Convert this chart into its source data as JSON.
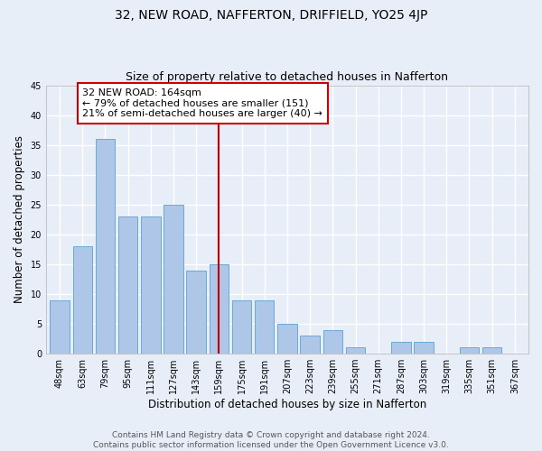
{
  "title": "32, NEW ROAD, NAFFERTON, DRIFFIELD, YO25 4JP",
  "subtitle": "Size of property relative to detached houses in Nafferton",
  "xlabel": "Distribution of detached houses by size in Nafferton",
  "ylabel": "Number of detached properties",
  "categories": [
    "48sqm",
    "63sqm",
    "79sqm",
    "95sqm",
    "111sqm",
    "127sqm",
    "143sqm",
    "159sqm",
    "175sqm",
    "191sqm",
    "207sqm",
    "223sqm",
    "239sqm",
    "255sqm",
    "271sqm",
    "287sqm",
    "303sqm",
    "319sqm",
    "335sqm",
    "351sqm",
    "367sqm"
  ],
  "values": [
    9,
    18,
    36,
    23,
    23,
    25,
    14,
    15,
    9,
    9,
    5,
    3,
    4,
    1,
    0,
    2,
    2,
    0,
    1,
    1,
    0
  ],
  "bar_color": "#aec6e8",
  "bar_edge_color": "#6aaad4",
  "vline_x": 7,
  "vline_color": "#cc0000",
  "annotation_text": "32 NEW ROAD: 164sqm\n← 79% of detached houses are smaller (151)\n21% of semi-detached houses are larger (40) →",
  "annotation_box_color": "#ffffff",
  "annotation_box_edge_color": "#cc0000",
  "ylim": [
    0,
    45
  ],
  "yticks": [
    0,
    5,
    10,
    15,
    20,
    25,
    30,
    35,
    40,
    45
  ],
  "footer": "Contains HM Land Registry data © Crown copyright and database right 2024.\nContains public sector information licensed under the Open Government Licence v3.0.",
  "bg_color": "#e8eef8",
  "plot_bg_color": "#e8eef8",
  "grid_color": "#ffffff",
  "title_fontsize": 10,
  "subtitle_fontsize": 9,
  "axis_label_fontsize": 8.5,
  "tick_fontsize": 7,
  "annotation_fontsize": 8,
  "footer_fontsize": 6.5
}
